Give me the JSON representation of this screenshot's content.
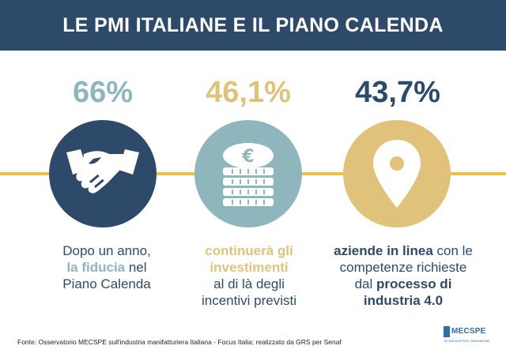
{
  "header": {
    "title": "LE PMI ITALIANE E IL PIANO CALENDA"
  },
  "stats": [
    {
      "value": "66%",
      "color": "#8fb5bd",
      "icon": "handshake-icon",
      "circle_color": "#2d4a6b"
    },
    {
      "value": "46,1%",
      "color": "#e1c27a",
      "icon": "euro-coins-icon",
      "circle_color": "#8fb5bd"
    },
    {
      "value": "43,7%",
      "color": "#2d4a6b",
      "icon": "location-pin-icon",
      "circle_color": "#e1c27a"
    }
  ],
  "descriptions": {
    "first": {
      "l1": "Dopo un anno,",
      "hl": "la fiducia",
      "l2b": " nel",
      "l3": "Piano Calenda"
    },
    "second": {
      "hl1": "continuerà gli",
      "hl2": "investimenti",
      "l3": "al di là degli",
      "l4": "incentivi previsti"
    },
    "third": {
      "b1": "aziende in linea",
      "l1b": " con le",
      "l2": "competenze richieste",
      "l3a": "dal ",
      "b2": "processo di",
      "b3": "industria 4.0"
    }
  },
  "footer": {
    "source": "Fonte: Osservatorio MECSPE sull'industria manifatturiera Italiana - Focus Italia; realizzato da GRS per Senaf"
  },
  "logo": {
    "text": "MECSPE",
    "sub": "TECNOLOGIE PER L'INNOVAZIONE"
  },
  "colors": {
    "navy": "#2d4a6b",
    "teal": "#8fb5bd",
    "gold": "#e1c27a",
    "line": "#e8c24a"
  }
}
